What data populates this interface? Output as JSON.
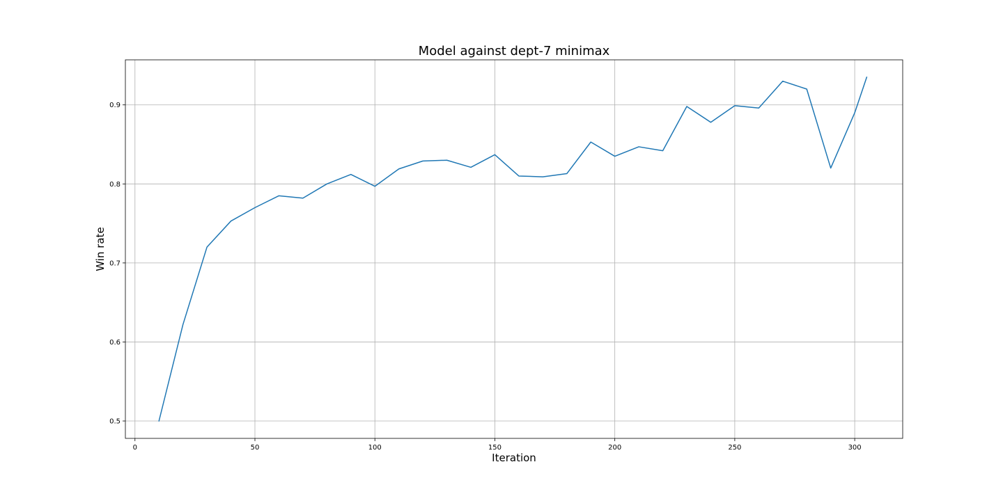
{
  "chart_data": {
    "type": "line",
    "title": "Model against dept-7 minimax",
    "xlabel": "Iteration",
    "ylabel": "Win rate",
    "xlim": [
      -4,
      320
    ],
    "ylim": [
      0.478,
      0.957
    ],
    "xticks": [
      0,
      50,
      100,
      150,
      200,
      250,
      300
    ],
    "yticks": [
      0.5,
      0.6,
      0.7,
      0.8,
      0.9
    ],
    "xtick_labels": [
      "0",
      "50",
      "100",
      "150",
      "200",
      "250",
      "300"
    ],
    "ytick_labels": [
      "0.5",
      "0.6",
      "0.7",
      "0.8",
      "0.9"
    ],
    "grid": true,
    "series": [
      {
        "color": "#1f77b4",
        "x": [
          10,
          20,
          30,
          40,
          50,
          60,
          70,
          80,
          90,
          100,
          110,
          120,
          130,
          140,
          150,
          160,
          170,
          180,
          190,
          200,
          210,
          220,
          230,
          240,
          250,
          260,
          270,
          280,
          290,
          300,
          305
        ],
        "y": [
          0.5,
          0.622,
          0.72,
          0.753,
          0.77,
          0.785,
          0.782,
          0.8,
          0.812,
          0.797,
          0.819,
          0.829,
          0.83,
          0.821,
          0.837,
          0.81,
          0.809,
          0.813,
          0.853,
          0.835,
          0.847,
          0.842,
          0.898,
          0.878,
          0.899,
          0.896,
          0.93,
          0.92,
          0.82,
          0.89,
          0.935
        ]
      }
    ]
  }
}
